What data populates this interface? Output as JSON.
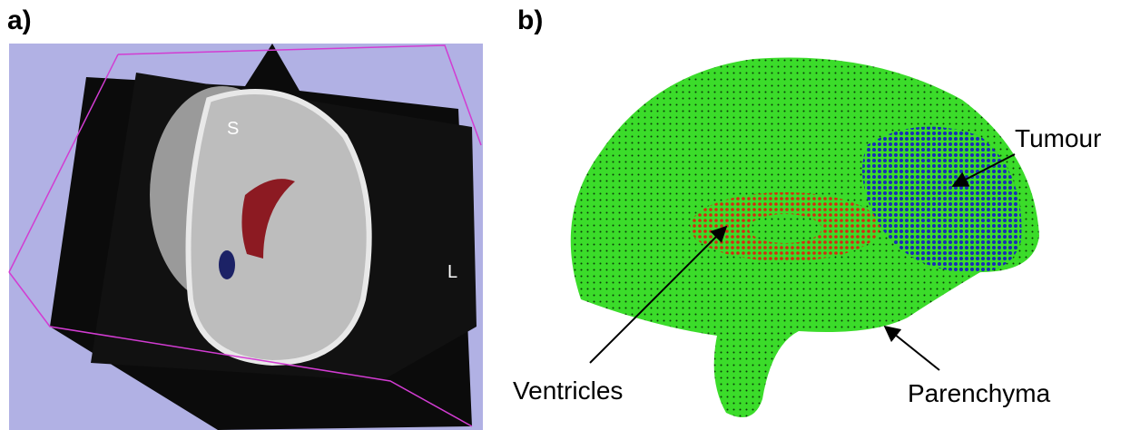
{
  "panels": [
    {
      "label": "a)",
      "orientation_labels": [
        "S",
        "L"
      ]
    },
    {
      "label": "b)",
      "annotations": [
        "Tumour",
        "Ventricles",
        "Parenchyma"
      ]
    }
  ]
}
